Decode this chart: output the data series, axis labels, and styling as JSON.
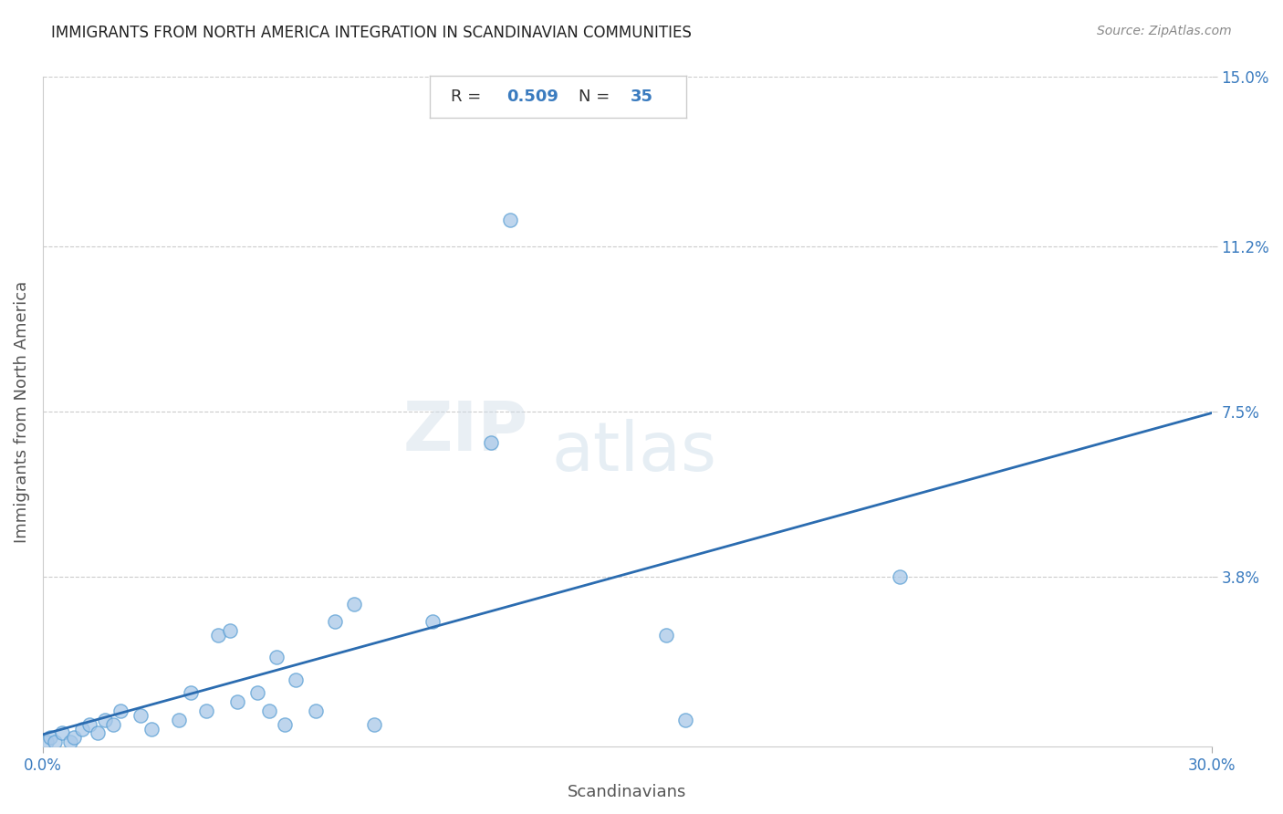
{
  "title": "IMMIGRANTS FROM NORTH AMERICA INTEGRATION IN SCANDINAVIAN COMMUNITIES",
  "source": "Source: ZipAtlas.com",
  "xlabel": "Scandinavians",
  "ylabel": "Immigrants from North America",
  "R": 0.509,
  "N": 35,
  "xlim": [
    0.0,
    0.3
  ],
  "ylim": [
    0.0,
    0.15
  ],
  "xticks": [
    0.0,
    0.3
  ],
  "xtick_labels": [
    "0.0%",
    "30.0%"
  ],
  "ytick_labels": [
    "15.0%",
    "11.2%",
    "7.5%",
    "3.8%"
  ],
  "ytick_values": [
    0.15,
    0.112,
    0.075,
    0.038
  ],
  "grid_color": "#cccccc",
  "scatter_color": "#a8c8e8",
  "scatter_edge_color": "#5a9fd4",
  "line_color": "#2b6cb0",
  "title_color": "#222222",
  "axis_label_color": "#555555",
  "tick_label_color": "#3a7bbf",
  "fig_bg_color": "#ffffff",
  "plot_bg_color": "#ffffff",
  "scatter_x": [
    0.001,
    0.002,
    0.003,
    0.005,
    0.007,
    0.008,
    0.01,
    0.012,
    0.014,
    0.016,
    0.018,
    0.02,
    0.025,
    0.028,
    0.035,
    0.038,
    0.042,
    0.045,
    0.048,
    0.05,
    0.055,
    0.058,
    0.06,
    0.062,
    0.065,
    0.07,
    0.075,
    0.08,
    0.085,
    0.1,
    0.115,
    0.12,
    0.16,
    0.165,
    0.22
  ],
  "scatter_y": [
    0.001,
    0.002,
    0.001,
    0.003,
    0.001,
    0.002,
    0.004,
    0.005,
    0.003,
    0.006,
    0.005,
    0.008,
    0.007,
    0.004,
    0.006,
    0.012,
    0.008,
    0.025,
    0.026,
    0.01,
    0.012,
    0.008,
    0.02,
    0.005,
    0.015,
    0.008,
    0.028,
    0.032,
    0.005,
    0.028,
    0.068,
    0.118,
    0.025,
    0.006,
    0.038
  ],
  "scatter_size": 120
}
